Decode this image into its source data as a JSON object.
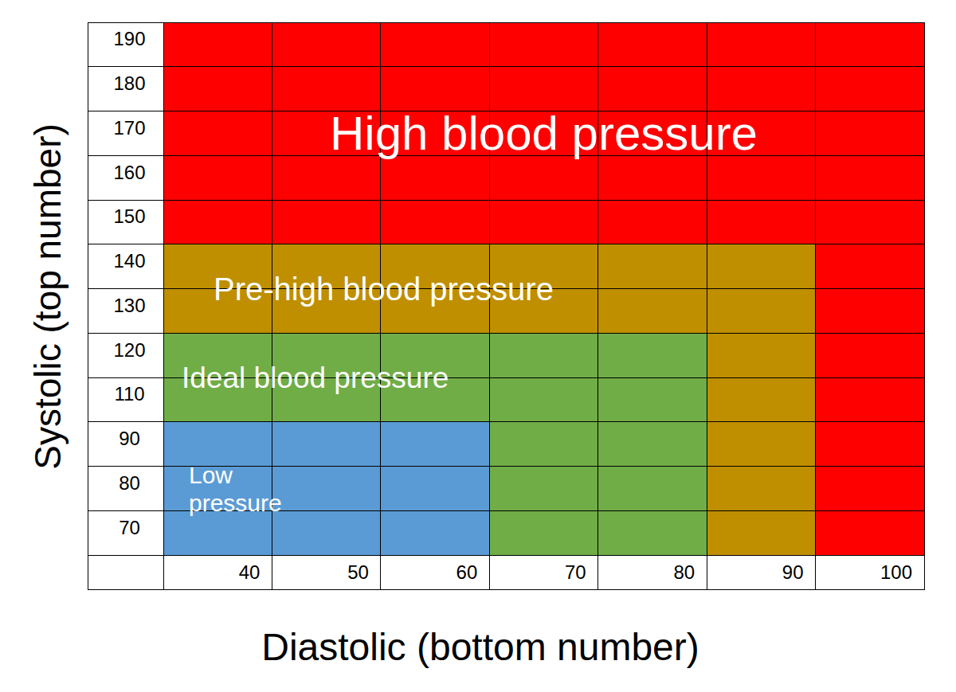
{
  "chart_data": {
    "type": "region",
    "xlabel": "Diastolic (bottom number)",
    "ylabel": "Systolic (top number)",
    "x_categories": [
      40,
      50,
      60,
      70,
      80,
      90,
      100
    ],
    "y_categories": [
      70,
      80,
      90,
      110,
      120,
      130,
      140,
      150,
      160,
      170,
      180,
      190
    ],
    "grid": true,
    "zones": [
      {
        "name": "High blood pressure",
        "color": "#ff0000",
        "x": [
          40,
          100
        ],
        "y": [
          70,
          190
        ]
      },
      {
        "name": "Pre-high blood pressure",
        "color": "#bf8f00",
        "x": [
          40,
          90
        ],
        "y": [
          70,
          140
        ]
      },
      {
        "name": "Ideal blood pressure",
        "color": "#70ad47",
        "x": [
          40,
          80
        ],
        "y": [
          70,
          120
        ]
      },
      {
        "name": "Low\npressure",
        "color": "#5b9bd5",
        "x": [
          40,
          60
        ],
        "y": [
          70,
          90
        ]
      }
    ]
  }
}
